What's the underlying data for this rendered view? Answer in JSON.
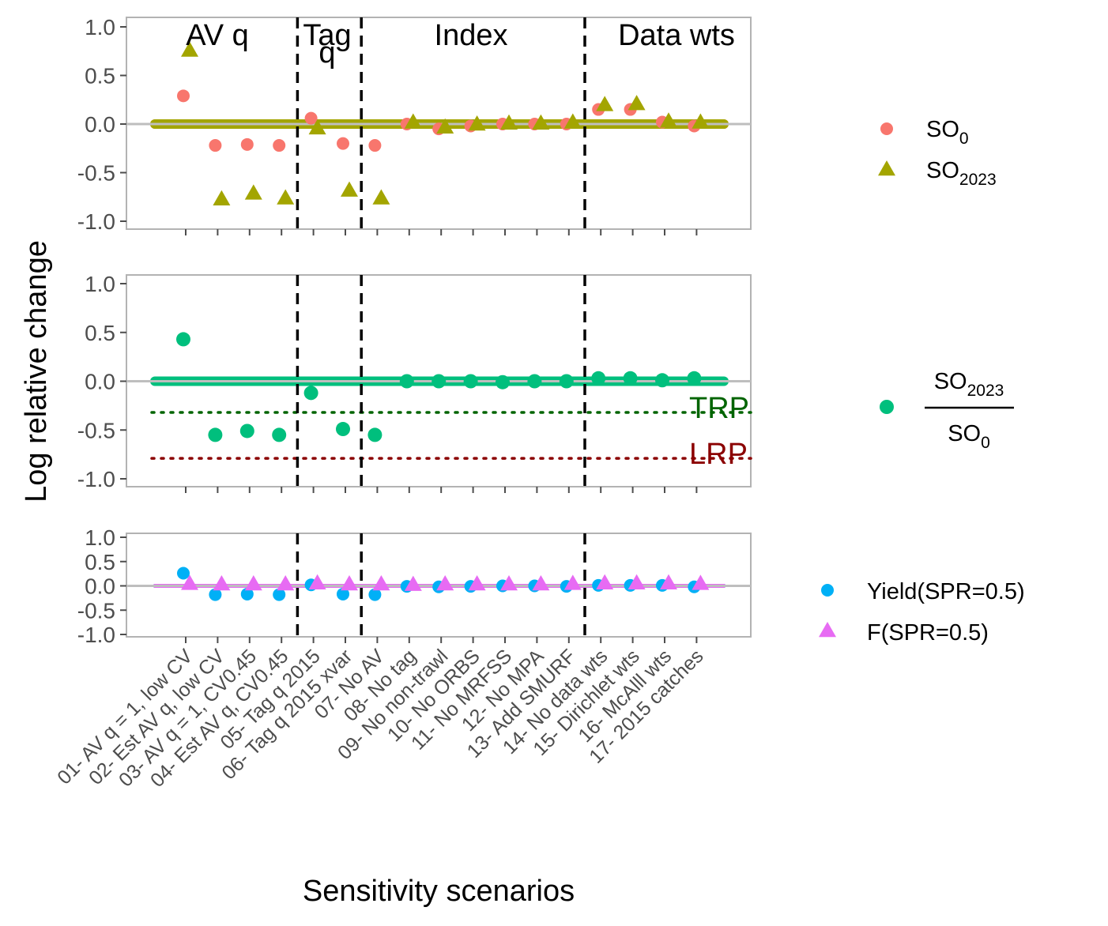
{
  "chart_data": {
    "type": "scatter",
    "xlabel": "Sensitivity scenarios",
    "ylabel": "Log relative change",
    "ylim": [
      -1.0,
      1.0
    ],
    "yticks": [
      1.0,
      0.5,
      0.0,
      -0.5,
      -1.0
    ],
    "ytick_labels": [
      "1.0",
      "0.5",
      "0.0",
      "-0.5",
      "-1.0"
    ],
    "categories": [
      "01- AV q = 1, low CV",
      "02- Est AV q, low CV",
      "03- AV q = 1, CV0.45",
      "04- Est AV q, CV0.45",
      "05- Tag q 2015",
      "06- Tag q 2015 xvar",
      "07- No AV",
      "08- No tag",
      "09- No non-trawl",
      "10- No ORBS",
      "11- No MRFSS",
      "12- No MPA",
      "13- Add SMURF",
      "14- No data wts",
      "15- Dirichlet wts",
      "16- McAlll wts",
      "17- 2015 catches"
    ],
    "groups": [
      {
        "label": "AV q"
      },
      {
        "label": "Tag",
        "label2": "q"
      },
      {
        "label": "Index"
      },
      {
        "label": "Data wts"
      }
    ],
    "group_dividers_after": [
      4,
      6,
      13
    ],
    "panels": [
      {
        "name": "spawning-output",
        "series": [
          {
            "name": "SO0",
            "legend_base": "SO",
            "legend_sub": "0",
            "color": "#F8766D",
            "marker": "circle",
            "values": [
              0.29,
              -0.22,
              -0.21,
              -0.22,
              0.06,
              -0.2,
              -0.22,
              0.0,
              -0.05,
              -0.02,
              0.0,
              0.0,
              0.0,
              0.15,
              0.15,
              0.02,
              -0.02
            ]
          },
          {
            "name": "SO2023",
            "legend_base": "SO",
            "legend_sub": "2023",
            "color": "#A3A500",
            "marker": "triangle",
            "values": [
              0.76,
              -0.77,
              -0.71,
              -0.76,
              -0.04,
              -0.68,
              -0.76,
              0.02,
              -0.03,
              0.0,
              0.01,
              0.01,
              0.02,
              0.2,
              0.21,
              0.03,
              0.02
            ]
          }
        ],
        "reference_lines": []
      },
      {
        "name": "depletion",
        "series": [
          {
            "name": "SO2023/SO0",
            "legend_num_base": "SO",
            "legend_num_sub": "2023",
            "legend_den_base": "SO",
            "legend_den_sub": "0",
            "color": "#00BF7D",
            "marker": "circle",
            "values": [
              0.43,
              -0.55,
              -0.51,
              -0.55,
              -0.12,
              -0.49,
              -0.55,
              0.0,
              0.0,
              0.0,
              -0.01,
              0.0,
              0.0,
              0.03,
              0.03,
              0.01,
              0.03
            ]
          }
        ],
        "reference_lines": [
          {
            "label": "TRP",
            "value": -0.32,
            "color": "#006400"
          },
          {
            "label": "LRP",
            "value": -0.79,
            "color": "#8B0000"
          }
        ]
      },
      {
        "name": "yield-f",
        "series": [
          {
            "name": "Yield(SPR=0.5)",
            "color": "#00B0F6",
            "marker": "circle",
            "values": [
              0.26,
              -0.18,
              -0.17,
              -0.18,
              0.02,
              -0.17,
              -0.18,
              -0.01,
              -0.02,
              -0.01,
              0.0,
              0.0,
              -0.01,
              0.01,
              0.01,
              0.01,
              -0.02
            ]
          },
          {
            "name": "F(SPR=0.5)",
            "color": "#E76BF3",
            "marker": "triangle",
            "values": [
              0.05,
              0.04,
              0.04,
              0.04,
              0.06,
              0.04,
              0.04,
              0.03,
              0.04,
              0.04,
              0.04,
              0.04,
              0.05,
              0.06,
              0.06,
              0.06,
              0.05
            ]
          }
        ],
        "reference_lines": []
      }
    ]
  }
}
